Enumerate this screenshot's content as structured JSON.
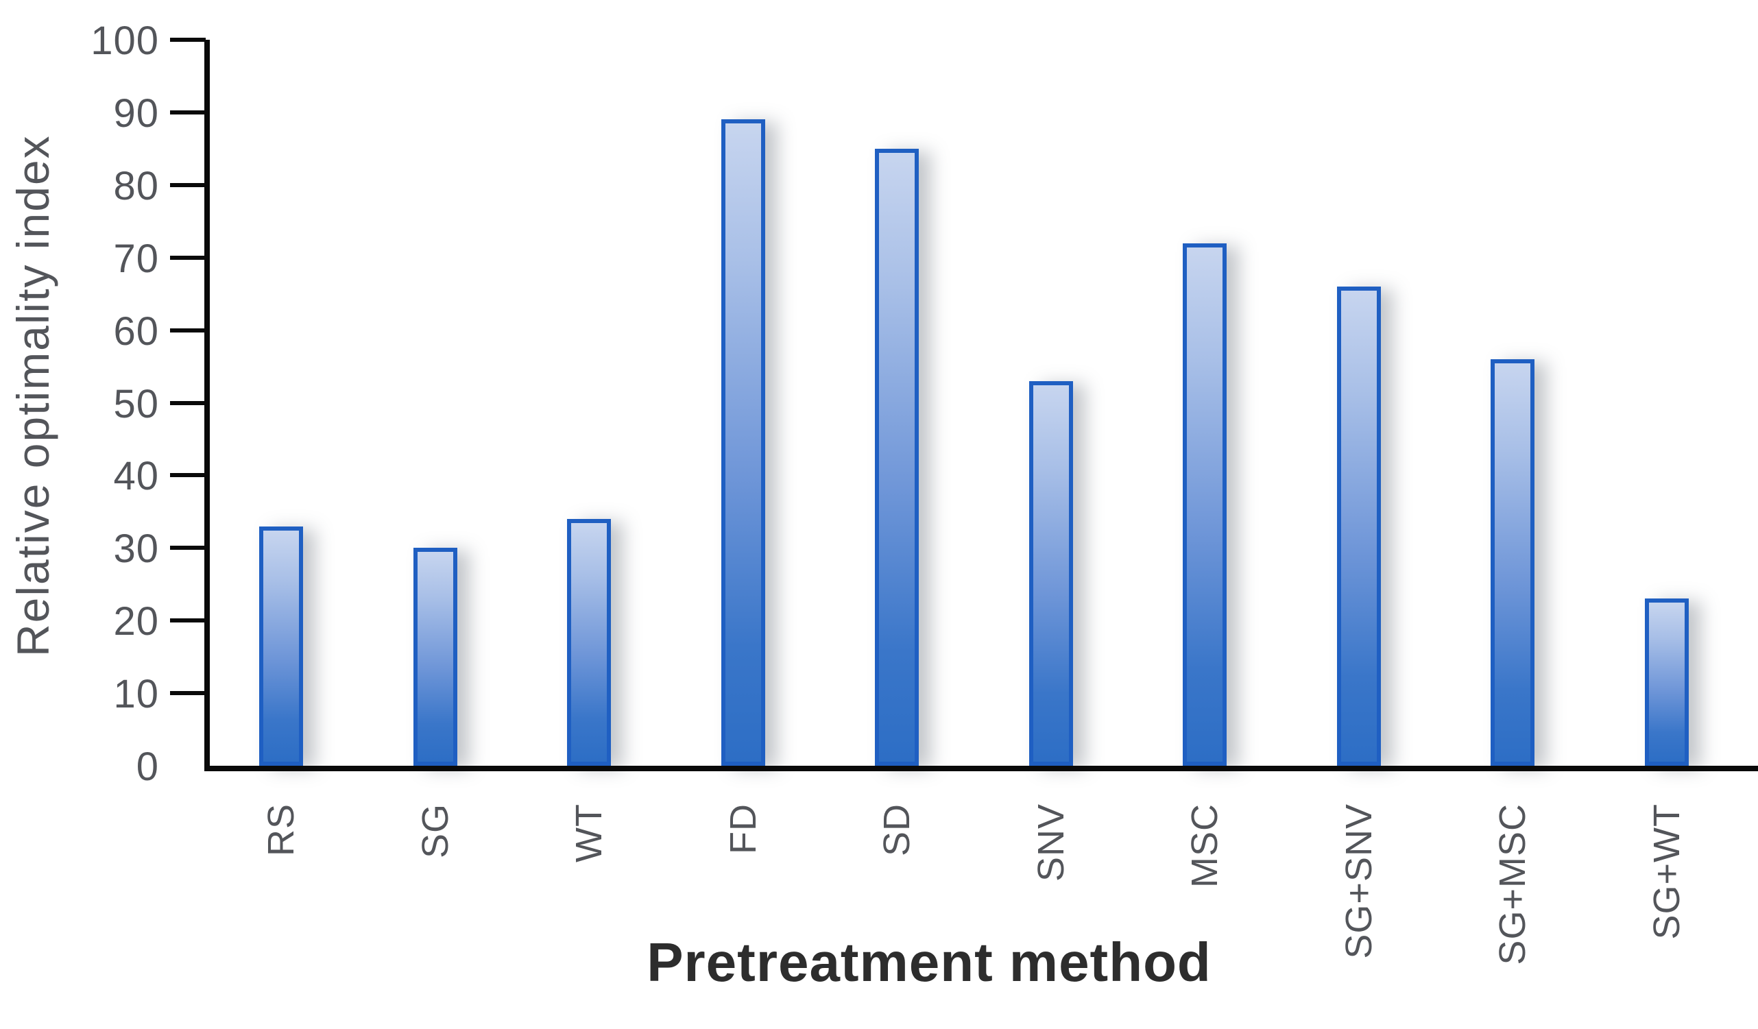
{
  "chart_data": {
    "type": "bar",
    "title": "",
    "xlabel": "Pretreatment method",
    "ylabel": "Relative optimality index",
    "categories": [
      "RS",
      "SG",
      "WT",
      "FD",
      "SD",
      "SNV",
      "MSC",
      "SG+SNV",
      "SG+MSC",
      "SG+WT"
    ],
    "values": [
      33,
      30,
      34,
      89,
      85,
      53,
      72,
      66,
      56,
      23
    ],
    "ylim": [
      0,
      100
    ],
    "ytick_step": 10,
    "yticks": [
      0,
      10,
      20,
      30,
      40,
      50,
      60,
      70,
      80,
      90,
      100
    ],
    "grid": false,
    "legend": "none",
    "bar_orientation": "vertical",
    "colors": {
      "bar_fill_top": "#c7d5ef",
      "bar_fill_bottom": "#2d6ec5",
      "bar_border": "#1f5fc2",
      "axis_line": "#0a0a0a",
      "tick_label": "#53555a",
      "y_axis_title": "#53555a",
      "x_axis_title": "#2d2d2d",
      "background": "#ffffff"
    }
  }
}
